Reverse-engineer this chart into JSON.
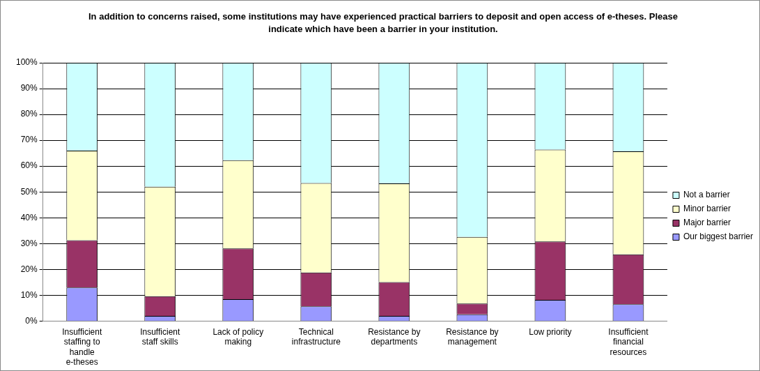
{
  "chart_data": {
    "type": "bar",
    "title": "In addition to concerns raised, some institutions may have experienced practical barriers to deposit and open access of e-theses.  Please indicate which have been a barrier in your institution.",
    "categories": [
      "Insufficient staffing to handle e-theses",
      "Insufficient staff skills",
      "Lack of policy making",
      "Technical infrastructure",
      "Resistance by departments",
      "Resistance by management",
      "Low priority",
      "Insufficient financial resources"
    ],
    "stacked": true,
    "series": [
      {
        "name": "Our biggest barrier",
        "color": "#9999ff",
        "values": [
          13.0,
          2.0,
          8.5,
          5.7,
          2.0,
          2.6,
          8.2,
          6.5
        ]
      },
      {
        "name": "Major barrier",
        "color": "#993366",
        "values": [
          18.3,
          7.6,
          19.6,
          13.1,
          13.1,
          4.2,
          22.6,
          19.3
        ]
      },
      {
        "name": "Minor barrier",
        "color": "#ffffcc",
        "values": [
          34.7,
          42.4,
          34.2,
          34.6,
          38.2,
          25.8,
          35.6,
          39.9
        ]
      },
      {
        "name": "Not a barrier",
        "color": "#ccffff",
        "values": [
          34.0,
          48.0,
          37.7,
          46.6,
          46.7,
          67.4,
          33.6,
          34.3
        ]
      }
    ],
    "ylim": [
      0,
      100
    ],
    "yticks": [
      {
        "value": 0,
        "label": "0%"
      },
      {
        "value": 10,
        "label": "10%"
      },
      {
        "value": 20,
        "label": "20%"
      },
      {
        "value": 30,
        "label": "30%"
      },
      {
        "value": 40,
        "label": "40%"
      },
      {
        "value": 50,
        "label": "50%"
      },
      {
        "value": 60,
        "label": "60%"
      },
      {
        "value": 70,
        "label": "70%"
      },
      {
        "value": 80,
        "label": "80%"
      },
      {
        "value": 90,
        "label": "90%"
      },
      {
        "value": 100,
        "label": "100%"
      }
    ],
    "grid": "y",
    "legend": "right"
  }
}
